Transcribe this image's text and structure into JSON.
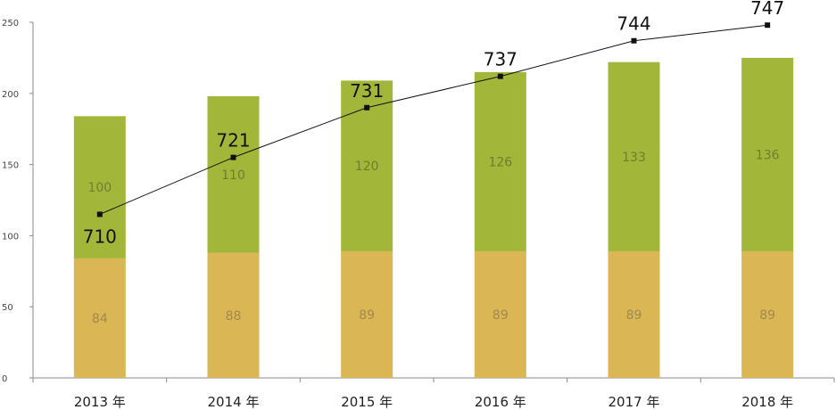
{
  "chart_data": {
    "type": "bar",
    "stacked": true,
    "categories": [
      "2013 年",
      "2014 年",
      "2015 年",
      "2016 年",
      "2017 年",
      "2018 年"
    ],
    "series": [
      {
        "values": [
          84,
          88,
          89,
          89,
          89,
          89
        ],
        "color": "#dbb655",
        "label_color": "#a08a4e"
      },
      {
        "values": [
          100,
          110,
          120,
          126,
          133,
          136
        ],
        "color": "#a2b73a",
        "label_color": "#6e7d30"
      }
    ],
    "line_series": {
      "values": [
        710,
        721,
        731,
        737,
        744,
        747
      ],
      "color": "#111111",
      "display_values": [
        115,
        155,
        190,
        212,
        237,
        248
      ]
    },
    "ylim": [
      0,
      250
    ],
    "yticks": [
      0,
      50,
      100,
      150,
      200,
      250
    ],
    "grid": false,
    "legend": "none"
  }
}
